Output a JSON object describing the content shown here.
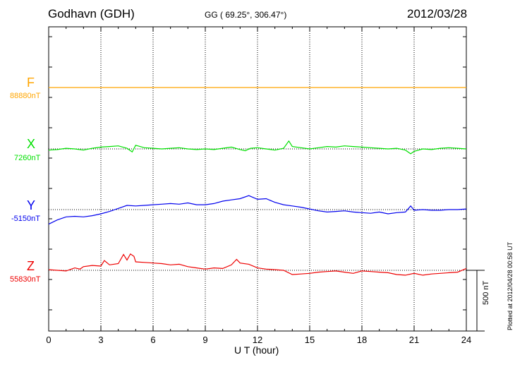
{
  "header": {
    "station": "Godhavn (GDH)",
    "coords": "GG ( 69.25°, 306.47°)",
    "date": "2012/03/28"
  },
  "components": [
    {
      "letter": "F",
      "base": "88880nT",
      "color": "#ffa500"
    },
    {
      "letter": "X",
      "base": "7260nT",
      "color": "#00e000"
    },
    {
      "letter": "Y",
      "base": "-5150nT",
      "color": "#0000ee"
    },
    {
      "letter": "Z",
      "base": "55830nT",
      "color": "#ee0000"
    }
  ],
  "axis": {
    "xlabel": "U T (hour)",
    "ticks": [
      "0",
      "3",
      "6",
      "9",
      "12",
      "15",
      "18",
      "21",
      "24"
    ]
  },
  "scale": {
    "label": "500 nT"
  },
  "plotted": "Plotted at 2012/04/28 00:58 UT",
  "chart_data": {
    "type": "line",
    "xlabel": "U T (hour)",
    "xlim": [
      0,
      24
    ],
    "x_ticks": [
      0,
      3,
      6,
      9,
      12,
      15,
      18,
      21,
      24
    ],
    "units": "nT",
    "scale_bar_nT": 500,
    "grid": true,
    "series": [
      {
        "name": "F",
        "baseline_nT": 88880,
        "color": "#ffa500",
        "x": [
          0,
          24
        ],
        "deviation_nT": [
          0,
          0
        ]
      },
      {
        "name": "X",
        "baseline_nT": 7260,
        "color": "#00e000",
        "x": [
          0,
          0.5,
          1,
          1.5,
          2,
          2.5,
          3,
          3.5,
          4,
          4.5,
          4.8,
          5,
          5.5,
          6,
          6.5,
          7,
          7.5,
          8,
          8.5,
          9,
          9.5,
          10,
          10.5,
          11,
          11.3,
          11.6,
          12,
          12.5,
          13,
          13.5,
          13.8,
          14,
          14.5,
          15,
          15.5,
          16,
          16.5,
          17,
          17.5,
          18,
          18.5,
          19,
          19.5,
          20,
          20.5,
          20.8,
          21,
          21.5,
          22,
          22.5,
          23,
          23.5,
          24
        ],
        "deviation_nT": [
          -10,
          -5,
          5,
          0,
          -10,
          5,
          15,
          20,
          25,
          5,
          -25,
          30,
          10,
          5,
          0,
          5,
          10,
          0,
          -5,
          0,
          -5,
          5,
          15,
          -5,
          -15,
          5,
          10,
          0,
          -10,
          5,
          65,
          20,
          10,
          0,
          10,
          20,
          15,
          25,
          20,
          15,
          10,
          5,
          0,
          5,
          -10,
          -40,
          -20,
          0,
          -5,
          5,
          10,
          5,
          0
        ]
      },
      {
        "name": "Y",
        "baseline_nT": -5150,
        "color": "#0000ee",
        "x": [
          0,
          0.5,
          1,
          1.5,
          2,
          2.5,
          3,
          3.5,
          4,
          4.5,
          5,
          5.5,
          6,
          6.5,
          7,
          7.5,
          8,
          8.5,
          9,
          9.5,
          10,
          10.5,
          11,
          11.5,
          12,
          12.5,
          13,
          13.5,
          14,
          14.5,
          15,
          15.5,
          16,
          16.5,
          17,
          17.5,
          18,
          18.5,
          19,
          19.5,
          20,
          20.5,
          20.8,
          21,
          21.5,
          22,
          22.5,
          23,
          23.5,
          24
        ],
        "deviation_nT": [
          -120,
          -85,
          -60,
          -55,
          -60,
          -50,
          -35,
          -15,
          10,
          35,
          30,
          35,
          40,
          45,
          50,
          45,
          55,
          40,
          40,
          50,
          70,
          80,
          90,
          115,
          85,
          90,
          60,
          40,
          30,
          20,
          5,
          -10,
          -20,
          -15,
          -10,
          -20,
          -25,
          -30,
          -20,
          -35,
          -25,
          -20,
          30,
          -5,
          0,
          -5,
          -5,
          0,
          0,
          5
        ]
      },
      {
        "name": "Z",
        "baseline_nT": 55830,
        "color": "#ee0000",
        "x": [
          0,
          0.5,
          1,
          1.5,
          1.8,
          2,
          2.5,
          3,
          3.2,
          3.5,
          4,
          4.3,
          4.5,
          4.7,
          4.9,
          5,
          5.5,
          6,
          6.5,
          7,
          7.5,
          8,
          8.5,
          9,
          9.5,
          10,
          10.5,
          10.8,
          11,
          11.5,
          12,
          12.5,
          13,
          13.5,
          14,
          14.5,
          15,
          15.5,
          16,
          16.5,
          17,
          17.5,
          18,
          18.5,
          19,
          19.5,
          20,
          20.5,
          21,
          21.5,
          22,
          22.5,
          23,
          23.5,
          24
        ],
        "deviation_nT": [
          5,
          0,
          -5,
          20,
          10,
          30,
          40,
          35,
          80,
          45,
          55,
          130,
          85,
          135,
          115,
          70,
          65,
          60,
          55,
          45,
          50,
          30,
          20,
          10,
          20,
          15,
          45,
          90,
          60,
          50,
          20,
          10,
          5,
          0,
          -35,
          -30,
          -25,
          -15,
          -10,
          -5,
          -15,
          -25,
          -5,
          -10,
          -15,
          -20,
          -35,
          -40,
          -25,
          -40,
          -30,
          -25,
          -20,
          -15,
          15
        ]
      }
    ]
  }
}
